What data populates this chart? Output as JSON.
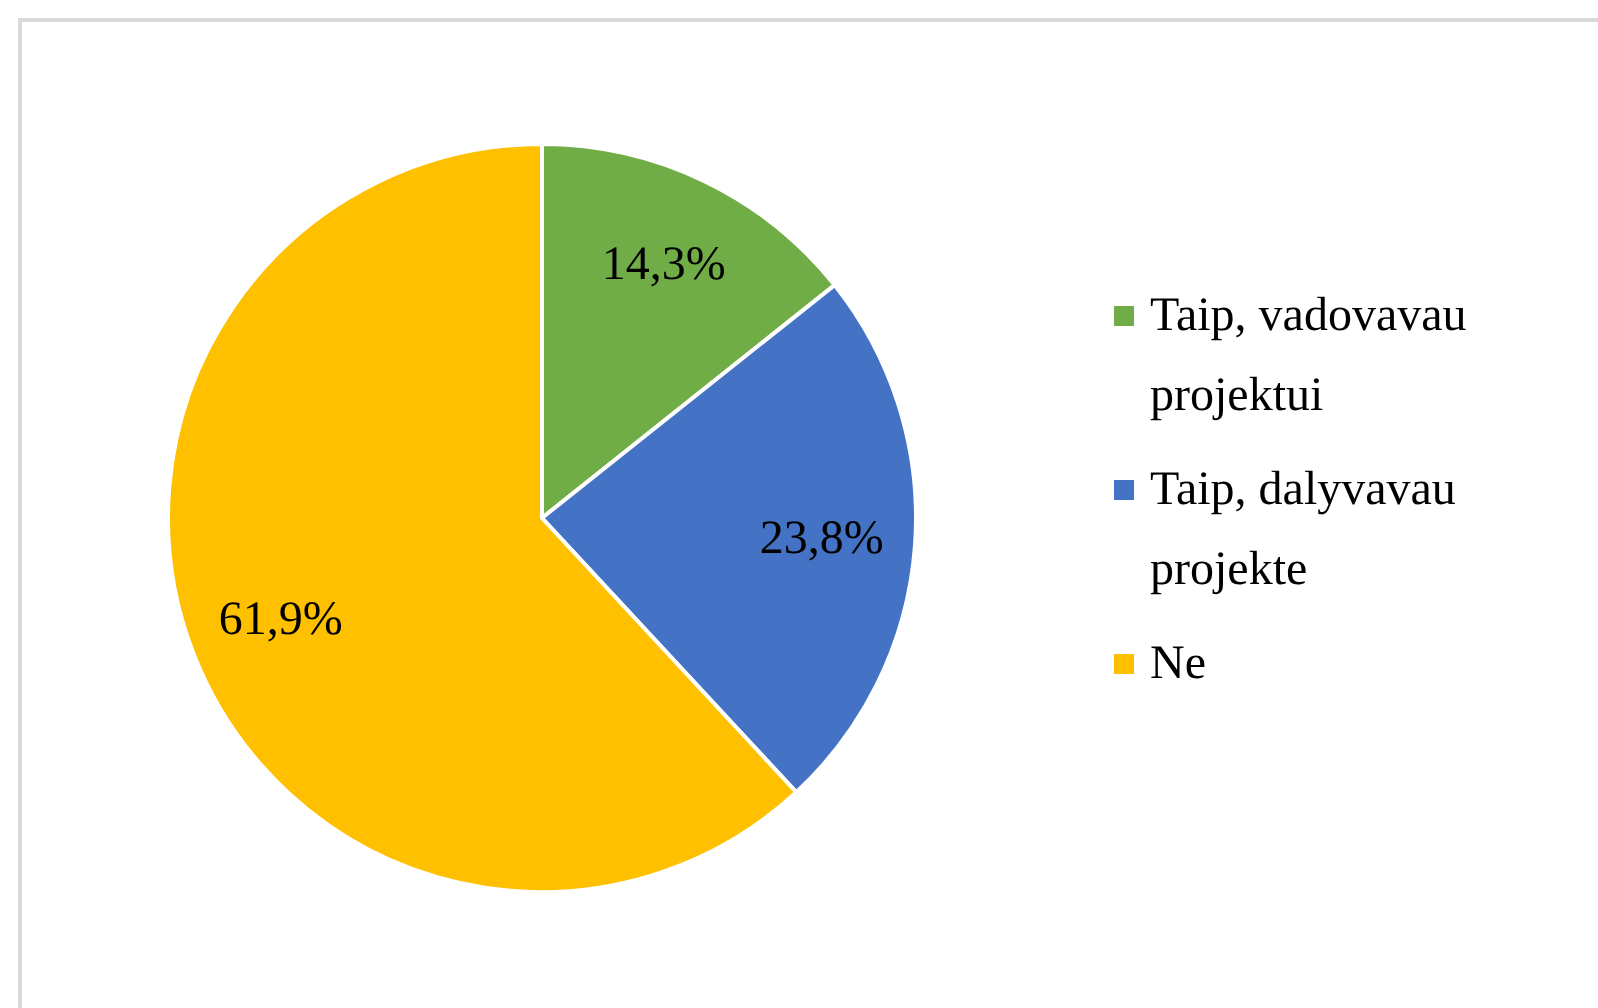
{
  "chart_data": {
    "type": "pie",
    "categories": [
      "Taip, vadovavau projektui",
      "Taip, dalyvavau projekte",
      "Ne"
    ],
    "values": [
      14.3,
      23.8,
      61.9
    ],
    "colors": [
      "#70ad47",
      "#4472c4",
      "#ffc000"
    ],
    "value_labels": [
      "14,3%",
      "23,8%",
      "61,9%"
    ],
    "legend": "right"
  }
}
